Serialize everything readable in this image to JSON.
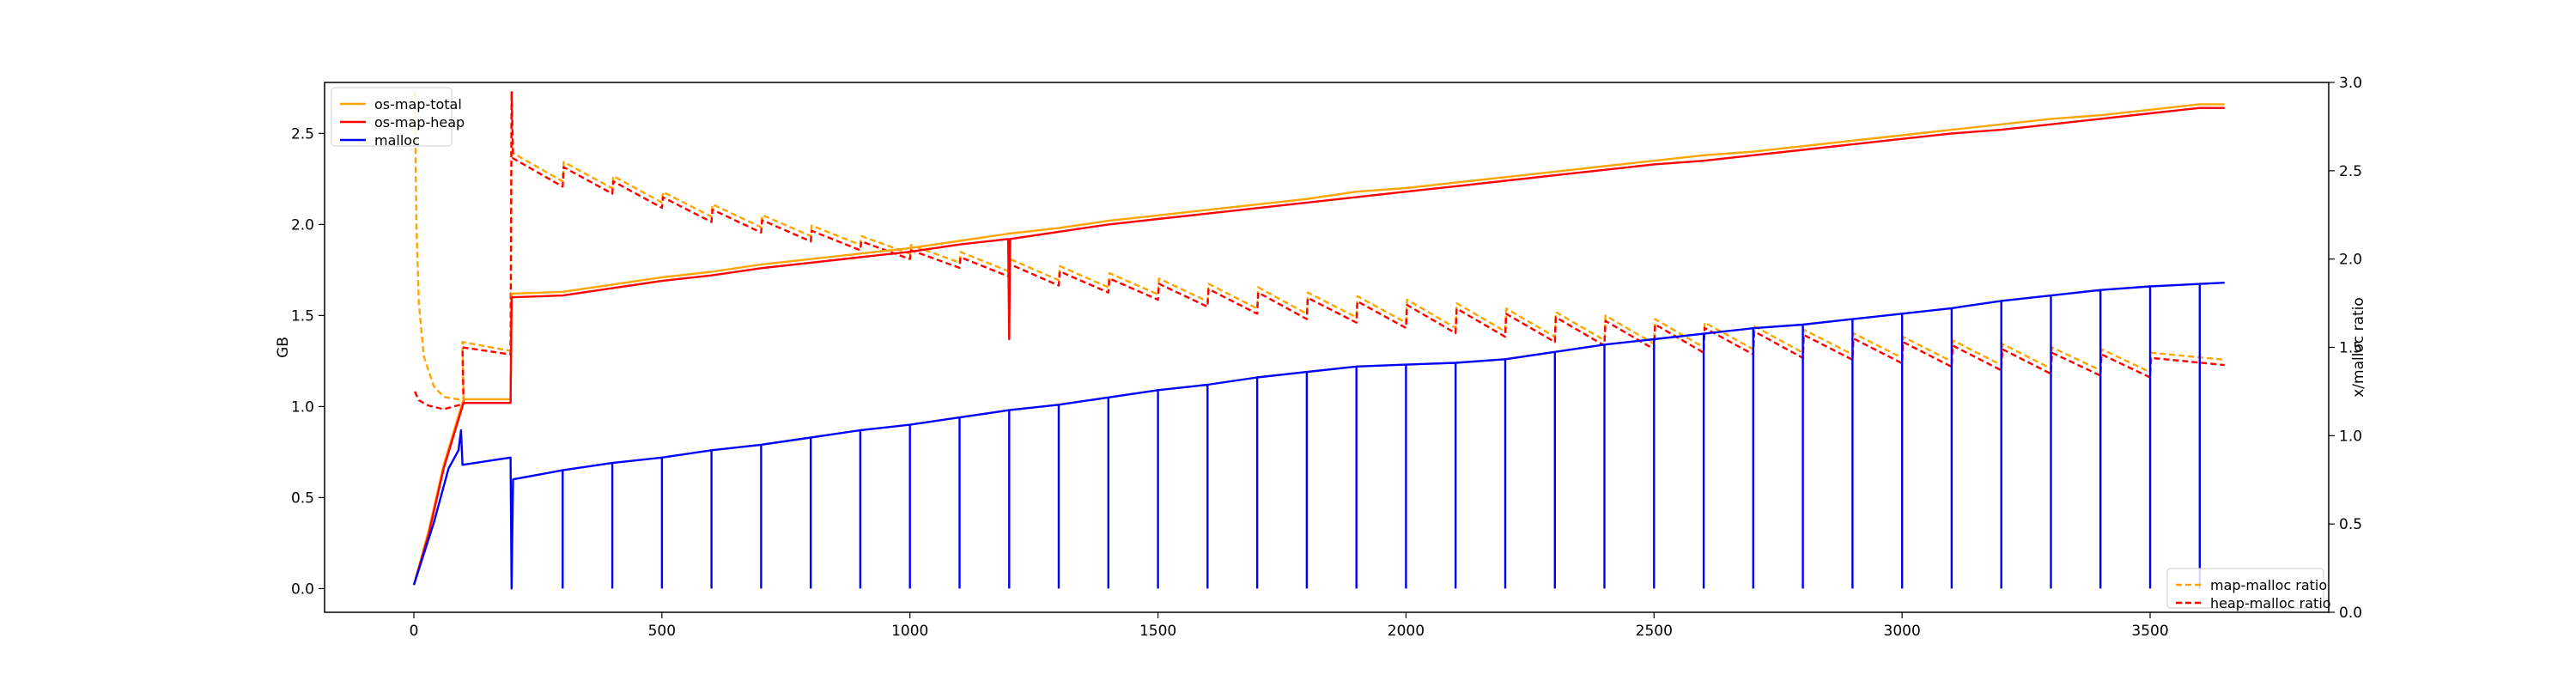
{
  "chart_data": {
    "type": "line",
    "xlim": [
      -180,
      3860
    ],
    "xticks": [
      0,
      500,
      1000,
      1500,
      2000,
      2500,
      3000,
      3500
    ],
    "y_left": {
      "label": "GB",
      "lim": [
        -0.13,
        2.78
      ],
      "ticks": [
        0.0,
        0.5,
        1.0,
        1.5,
        2.0,
        2.5
      ]
    },
    "y_right": {
      "label": "x/malloc ratio",
      "lim": [
        0.0,
        3.0
      ],
      "ticks": [
        0.0,
        0.5,
        1.0,
        1.5,
        2.0,
        2.5,
        3.0
      ]
    },
    "legend_left": {
      "placement": "top-left",
      "entries": [
        "os-map-total",
        "os-map-heap",
        "malloc"
      ]
    },
    "legend_right": {
      "placement": "bottom-right",
      "entries": [
        "map-malloc ratio",
        "heap-malloc ratio"
      ]
    },
    "series": [
      {
        "name": "os-map-total",
        "axis": "left",
        "color": "#ffa500",
        "dash": false,
        "points": [
          [
            0,
            0.02
          ],
          [
            30,
            0.32
          ],
          [
            60,
            0.68
          ],
          [
            80,
            0.86
          ],
          [
            100,
            1.04
          ],
          [
            195,
            1.04
          ],
          [
            197,
            1.62
          ],
          [
            300,
            1.63
          ],
          [
            400,
            1.67
          ],
          [
            500,
            1.71
          ],
          [
            600,
            1.74
          ],
          [
            700,
            1.78
          ],
          [
            800,
            1.81
          ],
          [
            900,
            1.84
          ],
          [
            1000,
            1.87
          ],
          [
            1100,
            1.91
          ],
          [
            1200,
            1.95
          ],
          [
            1300,
            1.98
          ],
          [
            1400,
            2.02
          ],
          [
            1500,
            2.05
          ],
          [
            1600,
            2.08
          ],
          [
            1700,
            2.11
          ],
          [
            1800,
            2.14
          ],
          [
            1900,
            2.18
          ],
          [
            2000,
            2.2
          ],
          [
            2100,
            2.23
          ],
          [
            2200,
            2.26
          ],
          [
            2300,
            2.29
          ],
          [
            2400,
            2.32
          ],
          [
            2500,
            2.35
          ],
          [
            2600,
            2.38
          ],
          [
            2700,
            2.4
          ],
          [
            2800,
            2.43
          ],
          [
            2900,
            2.46
          ],
          [
            3000,
            2.49
          ],
          [
            3100,
            2.52
          ],
          [
            3200,
            2.55
          ],
          [
            3300,
            2.58
          ],
          [
            3400,
            2.6
          ],
          [
            3500,
            2.63
          ],
          [
            3600,
            2.66
          ],
          [
            3650,
            2.66
          ]
        ]
      },
      {
        "name": "os-map-heap",
        "axis": "left",
        "color": "#ff0000",
        "dash": false,
        "points": [
          [
            0,
            0.02
          ],
          [
            30,
            0.3
          ],
          [
            60,
            0.66
          ],
          [
            80,
            0.84
          ],
          [
            100,
            1.02
          ],
          [
            195,
            1.02
          ],
          [
            197,
            1.6
          ],
          [
            300,
            1.61
          ],
          [
            400,
            1.65
          ],
          [
            500,
            1.69
          ],
          [
            600,
            1.72
          ],
          [
            700,
            1.76
          ],
          [
            800,
            1.79
          ],
          [
            900,
            1.82
          ],
          [
            1000,
            1.85
          ],
          [
            1100,
            1.89
          ],
          [
            1198,
            1.92
          ],
          [
            1200,
            1.37
          ],
          [
            1202,
            1.92
          ],
          [
            1300,
            1.96
          ],
          [
            1400,
            2.0
          ],
          [
            1500,
            2.03
          ],
          [
            1600,
            2.06
          ],
          [
            1700,
            2.09
          ],
          [
            1800,
            2.12
          ],
          [
            1900,
            2.15
          ],
          [
            2000,
            2.18
          ],
          [
            2100,
            2.21
          ],
          [
            2200,
            2.24
          ],
          [
            2300,
            2.27
          ],
          [
            2400,
            2.3
          ],
          [
            2500,
            2.33
          ],
          [
            2600,
            2.35
          ],
          [
            2700,
            2.38
          ],
          [
            2800,
            2.41
          ],
          [
            2900,
            2.44
          ],
          [
            3000,
            2.47
          ],
          [
            3100,
            2.5
          ],
          [
            3200,
            2.52
          ],
          [
            3300,
            2.55
          ],
          [
            3400,
            2.58
          ],
          [
            3500,
            2.61
          ],
          [
            3600,
            2.64
          ],
          [
            3650,
            2.64
          ]
        ]
      },
      {
        "name": "malloc",
        "axis": "left",
        "color": "#0000ff",
        "dash": false,
        "points": [
          [
            0,
            0.02
          ],
          [
            40,
            0.36
          ],
          [
            70,
            0.66
          ],
          [
            90,
            0.76
          ],
          [
            95,
            0.87
          ],
          [
            98,
            0.68
          ],
          [
            195,
            0.72
          ],
          [
            197,
            0.0
          ],
          [
            200,
            0.6
          ],
          [
            300,
            0.65
          ],
          [
            400,
            0.69
          ],
          [
            500,
            0.72
          ],
          [
            600,
            0.76
          ],
          [
            700,
            0.79
          ],
          [
            800,
            0.83
          ],
          [
            900,
            0.87
          ],
          [
            1000,
            0.9
          ],
          [
            1100,
            0.94
          ],
          [
            1200,
            0.98
          ],
          [
            1300,
            1.01
          ],
          [
            1400,
            1.05
          ],
          [
            1500,
            1.09
          ],
          [
            1600,
            1.12
          ],
          [
            1700,
            1.16
          ],
          [
            1800,
            1.19
          ],
          [
            1900,
            1.22
          ],
          [
            2000,
            1.23
          ],
          [
            2100,
            1.24
          ],
          [
            2200,
            1.26
          ],
          [
            2300,
            1.3
          ],
          [
            2400,
            1.34
          ],
          [
            2500,
            1.37
          ],
          [
            2600,
            1.4
          ],
          [
            2700,
            1.43
          ],
          [
            2800,
            1.45
          ],
          [
            2900,
            1.48
          ],
          [
            3000,
            1.51
          ],
          [
            3100,
            1.54
          ],
          [
            3200,
            1.58
          ],
          [
            3300,
            1.61
          ],
          [
            3400,
            1.64
          ],
          [
            3500,
            1.66
          ],
          [
            3650,
            1.68
          ]
        ],
        "drop_to_zero_at": [
          300,
          400,
          500,
          600,
          700,
          800,
          900,
          1000,
          1100,
          1200,
          1300,
          1400,
          1500,
          1600,
          1700,
          1800,
          1900,
          2000,
          2100,
          2200,
          2300,
          2400,
          2500,
          2600,
          2700,
          2800,
          2900,
          3000,
          3100,
          3200,
          3300,
          3400,
          3500,
          3600
        ]
      },
      {
        "name": "map-malloc ratio",
        "axis": "right",
        "color": "#ffa500",
        "dash": true,
        "points": [
          [
            2,
            2.95
          ],
          [
            5,
            2.2
          ],
          [
            10,
            1.75
          ],
          [
            20,
            1.45
          ],
          [
            40,
            1.28
          ],
          [
            60,
            1.22
          ],
          [
            100,
            1.2
          ],
          [
            98,
            1.53
          ],
          [
            195,
            1.48
          ],
          [
            197,
            2.95
          ],
          [
            200,
            2.6
          ],
          [
            300,
            2.44
          ],
          [
            302,
            2.55
          ],
          [
            400,
            2.4
          ],
          [
            402,
            2.47
          ],
          [
            500,
            2.32
          ],
          [
            502,
            2.38
          ],
          [
            600,
            2.24
          ],
          [
            602,
            2.31
          ],
          [
            700,
            2.18
          ],
          [
            702,
            2.25
          ],
          [
            800,
            2.13
          ],
          [
            802,
            2.19
          ],
          [
            900,
            2.08
          ],
          [
            902,
            2.13
          ],
          [
            1000,
            2.03
          ],
          [
            1002,
            2.08
          ],
          [
            1100,
            1.98
          ],
          [
            1102,
            2.04
          ],
          [
            1200,
            1.93
          ],
          [
            1202,
            2.0
          ],
          [
            1300,
            1.88
          ],
          [
            1302,
            1.96
          ],
          [
            1400,
            1.84
          ],
          [
            1402,
            1.92
          ],
          [
            1500,
            1.8
          ],
          [
            1502,
            1.89
          ],
          [
            1600,
            1.76
          ],
          [
            1602,
            1.86
          ],
          [
            1700,
            1.72
          ],
          [
            1702,
            1.84
          ],
          [
            1800,
            1.69
          ],
          [
            1802,
            1.81
          ],
          [
            1900,
            1.67
          ],
          [
            1902,
            1.79
          ],
          [
            2000,
            1.64
          ],
          [
            2002,
            1.77
          ],
          [
            2100,
            1.61
          ],
          [
            2102,
            1.75
          ],
          [
            2200,
            1.59
          ],
          [
            2202,
            1.72
          ],
          [
            2300,
            1.56
          ],
          [
            2302,
            1.7
          ],
          [
            2400,
            1.54
          ],
          [
            2402,
            1.68
          ],
          [
            2500,
            1.52
          ],
          [
            2502,
            1.66
          ],
          [
            2600,
            1.5
          ],
          [
            2602,
            1.64
          ],
          [
            2700,
            1.49
          ],
          [
            2702,
            1.62
          ],
          [
            2800,
            1.47
          ],
          [
            2802,
            1.6
          ],
          [
            2900,
            1.46
          ],
          [
            2902,
            1.58
          ],
          [
            3000,
            1.44
          ],
          [
            3002,
            1.56
          ],
          [
            3100,
            1.42
          ],
          [
            3102,
            1.54
          ],
          [
            3200,
            1.4
          ],
          [
            3202,
            1.52
          ],
          [
            3300,
            1.38
          ],
          [
            3302,
            1.5
          ],
          [
            3400,
            1.37
          ],
          [
            3402,
            1.49
          ],
          [
            3500,
            1.36
          ],
          [
            3502,
            1.47
          ],
          [
            3650,
            1.43
          ]
        ]
      },
      {
        "name": "heap-malloc ratio",
        "axis": "right",
        "color": "#ff0000",
        "dash": true,
        "points": [
          [
            2,
            1.25
          ],
          [
            10,
            1.2
          ],
          [
            30,
            1.17
          ],
          [
            60,
            1.15
          ],
          [
            100,
            1.18
          ],
          [
            98,
            1.5
          ],
          [
            195,
            1.46
          ],
          [
            197,
            2.95
          ],
          [
            200,
            2.57
          ],
          [
            300,
            2.41
          ],
          [
            302,
            2.52
          ],
          [
            400,
            2.37
          ],
          [
            402,
            2.44
          ],
          [
            500,
            2.29
          ],
          [
            502,
            2.35
          ],
          [
            600,
            2.21
          ],
          [
            602,
            2.28
          ],
          [
            700,
            2.15
          ],
          [
            702,
            2.22
          ],
          [
            800,
            2.1
          ],
          [
            802,
            2.16
          ],
          [
            900,
            2.05
          ],
          [
            902,
            2.1
          ],
          [
            1000,
            2.0
          ],
          [
            1002,
            2.05
          ],
          [
            1100,
            1.95
          ],
          [
            1102,
            2.01
          ],
          [
            1200,
            1.9
          ],
          [
            1202,
            1.97
          ],
          [
            1300,
            1.85
          ],
          [
            1302,
            1.93
          ],
          [
            1400,
            1.81
          ],
          [
            1402,
            1.89
          ],
          [
            1500,
            1.77
          ],
          [
            1502,
            1.86
          ],
          [
            1600,
            1.73
          ],
          [
            1602,
            1.83
          ],
          [
            1700,
            1.69
          ],
          [
            1702,
            1.81
          ],
          [
            1800,
            1.66
          ],
          [
            1802,
            1.78
          ],
          [
            1900,
            1.64
          ],
          [
            1902,
            1.76
          ],
          [
            2000,
            1.61
          ],
          [
            2002,
            1.74
          ],
          [
            2100,
            1.58
          ],
          [
            2102,
            1.72
          ],
          [
            2200,
            1.56
          ],
          [
            2202,
            1.69
          ],
          [
            2300,
            1.53
          ],
          [
            2302,
            1.67
          ],
          [
            2400,
            1.51
          ],
          [
            2402,
            1.65
          ],
          [
            2500,
            1.49
          ],
          [
            2502,
            1.63
          ],
          [
            2600,
            1.47
          ],
          [
            2602,
            1.61
          ],
          [
            2700,
            1.46
          ],
          [
            2702,
            1.59
          ],
          [
            2800,
            1.44
          ],
          [
            2802,
            1.57
          ],
          [
            2900,
            1.43
          ],
          [
            2902,
            1.55
          ],
          [
            3000,
            1.41
          ],
          [
            3002,
            1.53
          ],
          [
            3100,
            1.39
          ],
          [
            3102,
            1.51
          ],
          [
            3200,
            1.37
          ],
          [
            3202,
            1.49
          ],
          [
            3300,
            1.35
          ],
          [
            3302,
            1.47
          ],
          [
            3400,
            1.34
          ],
          [
            3402,
            1.46
          ],
          [
            3500,
            1.33
          ],
          [
            3502,
            1.44
          ],
          [
            3650,
            1.4
          ]
        ]
      }
    ]
  }
}
